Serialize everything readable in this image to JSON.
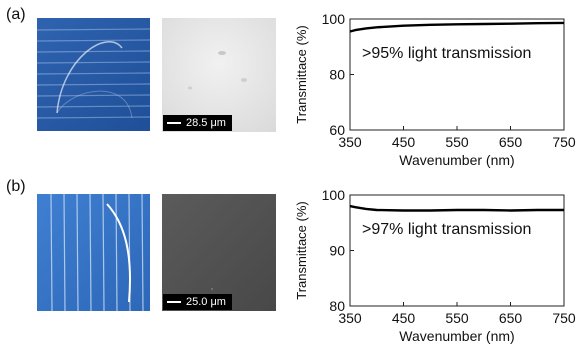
{
  "panels": [
    {
      "label": "(a)",
      "scale_text": "28.5 μm",
      "chart_data": {
        "type": "line",
        "title": "",
        "xlabel": "Wavenumber  (nm)",
        "ylabel": "Transmittace (%)",
        "xlim": [
          350,
          750
        ],
        "ylim": [
          60,
          100
        ],
        "xticks": [
          350,
          450,
          550,
          650,
          750
        ],
        "yticks": [
          60,
          80,
          100
        ],
        "annotation": ">95% light transmission",
        "grid": false,
        "series": [
          {
            "x": [
              350,
              360,
              380,
              400,
              450,
              500,
              550,
              600,
              650,
              700,
              750
            ],
            "y": [
              95.5,
              96.0,
              96.6,
              97.0,
              97.6,
              97.9,
              98.1,
              98.2,
              98.3,
              98.5,
              98.6
            ]
          }
        ]
      }
    },
    {
      "label": "(b)",
      "scale_text": "25.0 μm",
      "chart_data": {
        "type": "line",
        "title": "",
        "xlabel": "Wavenumber  (nm)",
        "ylabel": "Transmittace (%)",
        "xlim": [
          350,
          750
        ],
        "ylim": [
          80,
          100
        ],
        "xticks": [
          350,
          450,
          550,
          650,
          750
        ],
        "yticks": [
          80,
          90,
          100
        ],
        "annotation": ">97% light transmission",
        "grid": false,
        "series": [
          {
            "x": [
              350,
              360,
              380,
              400,
              450,
              500,
              550,
              600,
              650,
              700,
              750
            ],
            "y": [
              98.0,
              97.8,
              97.5,
              97.3,
              97.2,
              97.2,
              97.3,
              97.3,
              97.2,
              97.3,
              97.3
            ]
          }
        ]
      }
    }
  ]
}
